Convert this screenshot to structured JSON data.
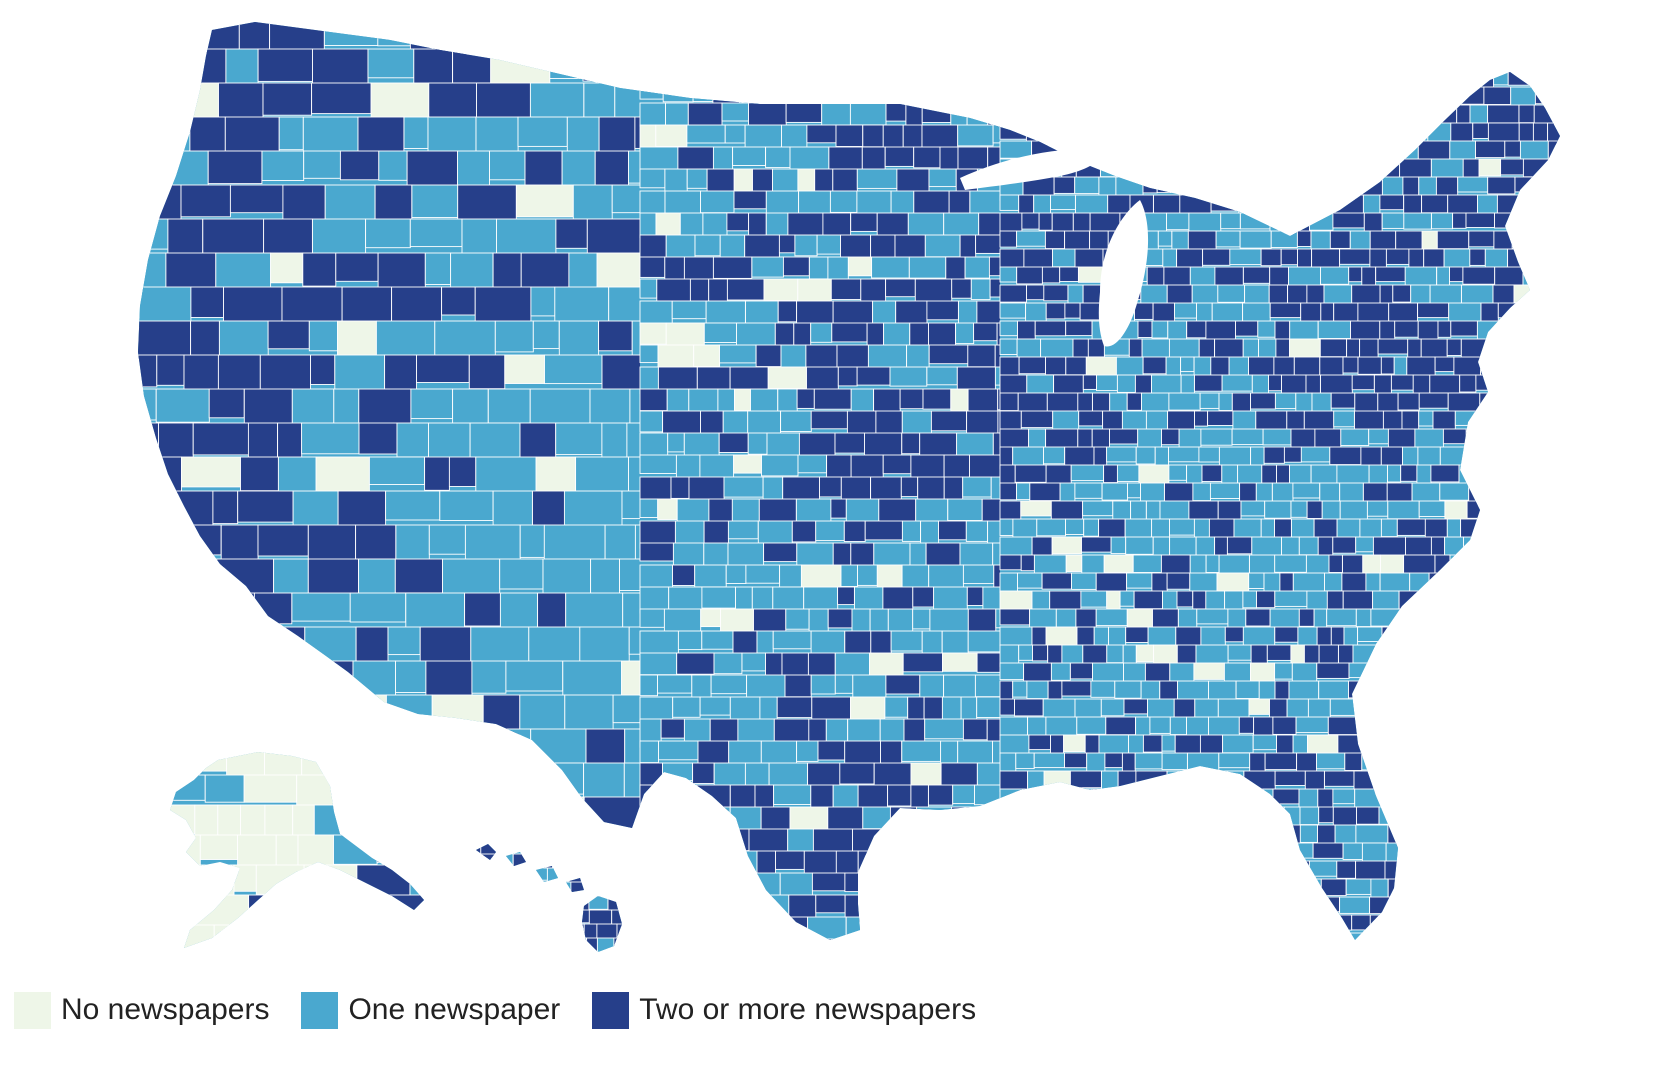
{
  "colors": {
    "none": "#eef6e8",
    "one": "#4aa8cf",
    "two_plus": "#263f8a",
    "county_border": "#ffffff",
    "background": "#ffffff"
  },
  "legend": {
    "items": [
      {
        "key": "none",
        "label": "No newspapers",
        "icon": "legend-swatch-light"
      },
      {
        "key": "one",
        "label": "One newspaper",
        "icon": "legend-swatch-medium"
      },
      {
        "key": "two_plus",
        "label": "Two or more newspapers",
        "icon": "legend-swatch-dark"
      }
    ]
  },
  "map": {
    "type": "choropleth",
    "geography": "United States counties",
    "regions": [
      "Contiguous United States",
      "Alaska",
      "Hawaii"
    ],
    "categories": [
      "none",
      "one",
      "two_plus"
    ],
    "regional_pattern": {
      "west_coast": "two_plus",
      "northern_plains": "mixed",
      "central_plains": "one",
      "midwest": "two_plus",
      "southeast": "one",
      "texas_gulf": "two_plus",
      "florida": "two_plus",
      "northeast": "two_plus",
      "alaska": "none",
      "hawaii": "two_plus"
    }
  }
}
